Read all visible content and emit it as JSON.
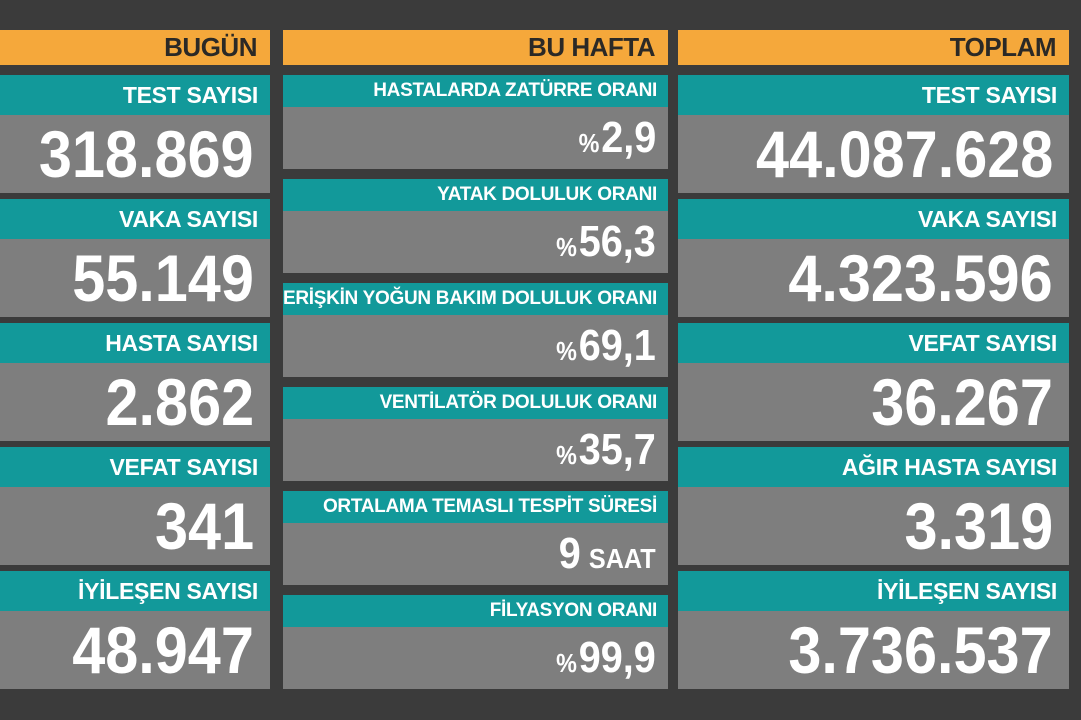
{
  "colors": {
    "page_bg": "#3B3B3B",
    "orange": "#F5A83B",
    "teal": "#12999A",
    "value_bg": "#7E7E7E",
    "header_text": "#2B2926",
    "text": "#FFFFFF"
  },
  "columns": {
    "today": {
      "header": "BUGÜN",
      "panels": [
        {
          "label": "TEST SAYISI",
          "value": "318.869"
        },
        {
          "label": "VAKA SAYISI",
          "value": "55.149"
        },
        {
          "label": "HASTA SAYISI",
          "value": "2.862"
        },
        {
          "label": "VEFAT SAYISI",
          "value": "341"
        },
        {
          "label": "İYİLEŞEN SAYISI",
          "value": "48.947"
        }
      ]
    },
    "week": {
      "header": "BU HAFTA",
      "panels": [
        {
          "label": "HASTALARDA ZATÜRRE ORANI",
          "prefix": "%",
          "value": "2,9"
        },
        {
          "label": "YATAK DOLULUK ORANI",
          "prefix": "%",
          "value": "56,3"
        },
        {
          "label": "ERİŞKİN YOĞUN BAKIM DOLULUK ORANI",
          "prefix": "%",
          "value": "69,1"
        },
        {
          "label": "VENTİLATÖR DOLULUK ORANI",
          "prefix": "%",
          "value": "35,7"
        },
        {
          "label": "ORTALAMA TEMASLI TESPİT SÜRESİ",
          "value": "9",
          "suffix": "SAAT"
        },
        {
          "label": "FİLYASYON ORANI",
          "prefix": "%",
          "value": "99,9"
        }
      ]
    },
    "total": {
      "header": "TOPLAM",
      "panels": [
        {
          "label": "TEST SAYISI",
          "value": "44.087.628"
        },
        {
          "label": "VAKA SAYISI",
          "value": "4.323.596"
        },
        {
          "label": "VEFAT SAYISI",
          "value": "36.267"
        },
        {
          "label": "AĞIR HASTA SAYISI",
          "value": "3.319"
        },
        {
          "label": "İYİLEŞEN SAYISI",
          "value": "3.736.537"
        }
      ]
    }
  },
  "chart_data": {
    "type": "table",
    "columns": [
      {
        "header": "BUGÜN",
        "rows": [
          {
            "label": "TEST SAYISI",
            "value": 318869,
            "display": "318.869"
          },
          {
            "label": "VAKA SAYISI",
            "value": 55149,
            "display": "55.149"
          },
          {
            "label": "HASTA SAYISI",
            "value": 2862,
            "display": "2.862"
          },
          {
            "label": "VEFAT SAYISI",
            "value": 341,
            "display": "341"
          },
          {
            "label": "İYİLEŞEN SAYISI",
            "value": 48947,
            "display": "48.947"
          }
        ]
      },
      {
        "header": "BU HAFTA",
        "rows": [
          {
            "label": "HASTALARDA ZATÜRRE ORANI",
            "value": 2.9,
            "unit": "%",
            "display": "%2,9"
          },
          {
            "label": "YATAK DOLULUK ORANI",
            "value": 56.3,
            "unit": "%",
            "display": "%56,3"
          },
          {
            "label": "ERİŞKİN YOĞUN BAKIM DOLULUK ORANI",
            "value": 69.1,
            "unit": "%",
            "display": "%69,1"
          },
          {
            "label": "VENTİLATÖR DOLULUK ORANI",
            "value": 35.7,
            "unit": "%",
            "display": "%35,7"
          },
          {
            "label": "ORTALAMA TEMASLI TESPİT SÜRESİ",
            "value": 9,
            "unit": "SAAT",
            "display": "9 SAAT"
          },
          {
            "label": "FİLYASYON ORANI",
            "value": 99.9,
            "unit": "%",
            "display": "%99,9"
          }
        ]
      },
      {
        "header": "TOPLAM",
        "rows": [
          {
            "label": "TEST SAYISI",
            "value": 44087628,
            "display": "44.087.628"
          },
          {
            "label": "VAKA SAYISI",
            "value": 4323596,
            "display": "4.323.596"
          },
          {
            "label": "VEFAT SAYISI",
            "value": 36267,
            "display": "36.267"
          },
          {
            "label": "AĞIR HASTA SAYISI",
            "value": 3319,
            "display": "3.319"
          },
          {
            "label": "İYİLEŞEN SAYISI",
            "value": 3736537,
            "display": "3.736.537"
          }
        ]
      }
    ]
  }
}
